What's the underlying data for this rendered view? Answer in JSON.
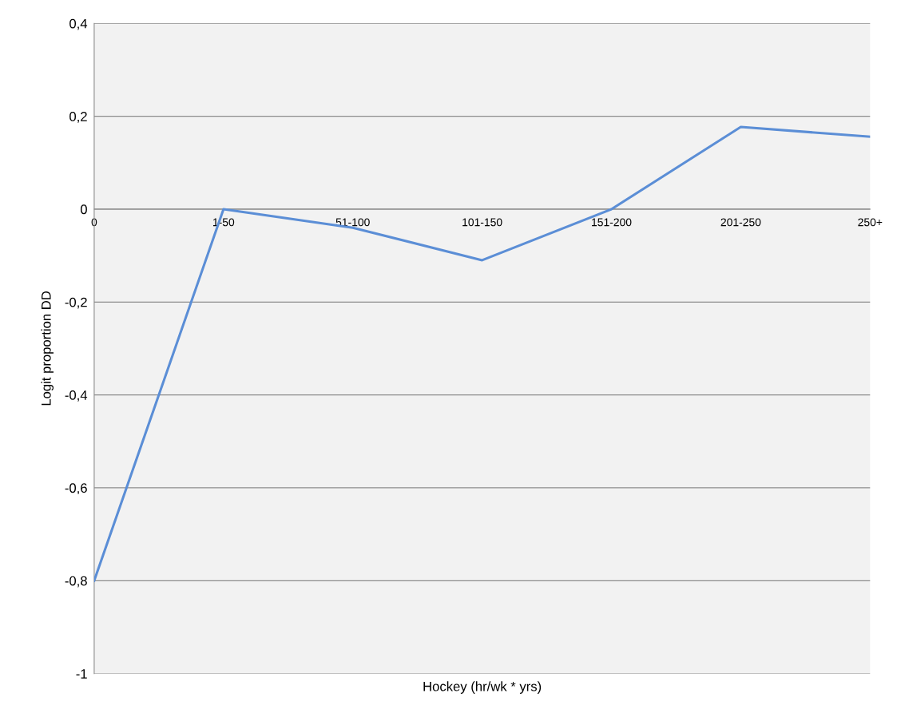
{
  "chart_data": {
    "type": "line",
    "xlabel": "Hockey (hr/wk * yrs)",
    "ylabel": "Logit proportion DD",
    "categories": [
      "0",
      "1-50",
      "51-100",
      "101-150",
      "151-200",
      "201-250",
      "250+"
    ],
    "series": [
      {
        "color": "#5b8ed6",
        "values": [
          -0.8,
          0,
          -0.04,
          -0.11,
          0,
          0.177,
          0.156
        ]
      }
    ],
    "ylim": [
      -1,
      0.4
    ],
    "yticks": [
      {
        "value": -1,
        "label": "-1"
      },
      {
        "value": -0.8,
        "label": "-0,8"
      },
      {
        "value": -0.6,
        "label": "-0,6"
      },
      {
        "value": -0.4,
        "label": "-0,4"
      },
      {
        "value": -0.2,
        "label": "-0,2"
      },
      {
        "value": 0,
        "label": "0"
      },
      {
        "value": 0.2,
        "label": "0,2"
      },
      {
        "value": 0.4,
        "label": "0,4"
      }
    ],
    "grid": "y",
    "marker": "none",
    "line_style": "solid",
    "legend": false
  }
}
